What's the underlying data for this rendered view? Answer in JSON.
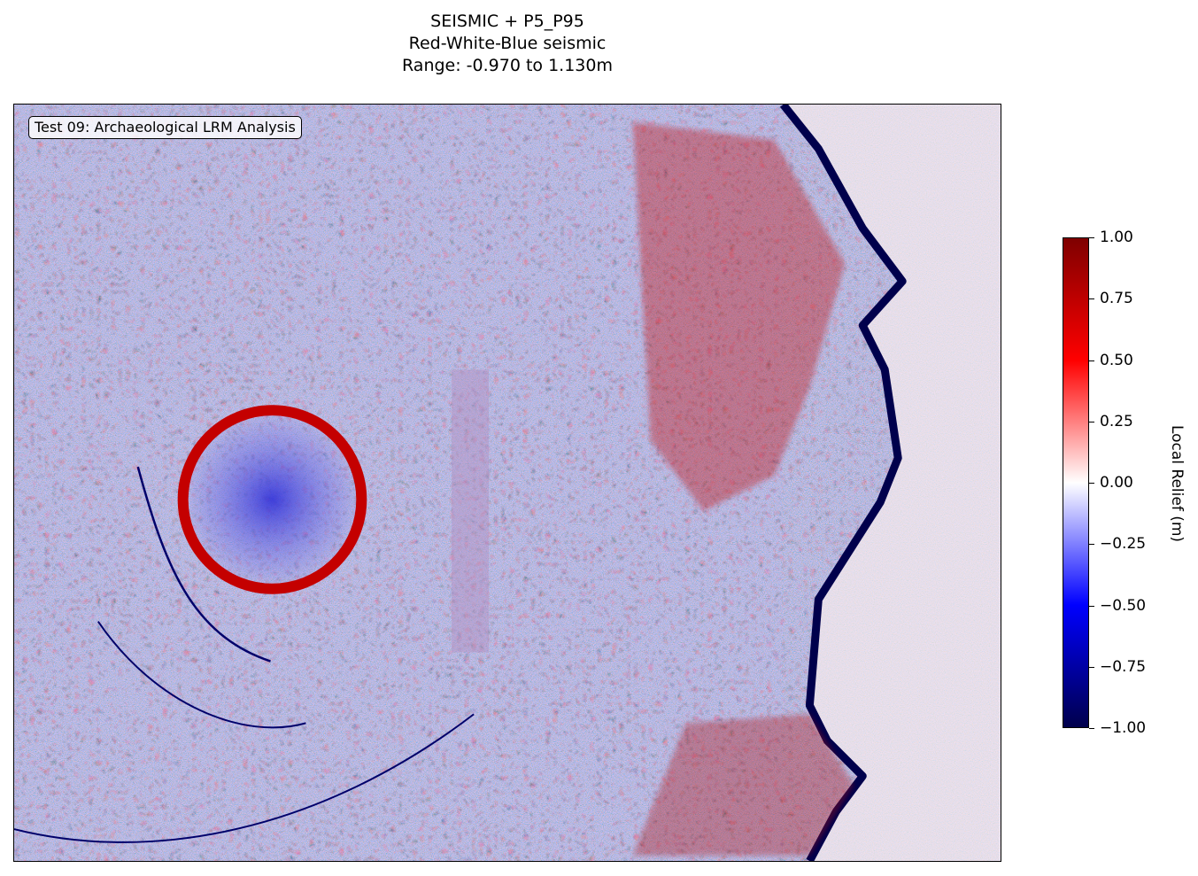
{
  "chart_data": {
    "type": "heatmap",
    "title_lines": [
      "SEISMIC + P5_P95",
      "Red-White-Blue seismic",
      "Range: -0.970 to 1.130m"
    ],
    "annotation": "Test 09: Archaeological LRM Analysis",
    "colormap": "seismic",
    "colormap_stops": [
      "#00004c",
      "#0000ff",
      "#ffffff",
      "#ff0000",
      "#7f0000"
    ],
    "value_range": [
      -0.97,
      1.13
    ],
    "colorbar": {
      "label": "Local Relief (m)",
      "vmin": -1.0,
      "vmax": 1.0,
      "ticks": [
        1.0,
        0.75,
        0.5,
        0.25,
        0.0,
        -0.25,
        -0.5,
        -0.75,
        -1.0
      ],
      "tick_labels": [
        "1.00",
        "0.75",
        "0.50",
        "0.25",
        "0.00",
        "−0.25",
        "−0.50",
        "−0.75",
        "−1.00"
      ]
    },
    "axes_visible": false
  }
}
